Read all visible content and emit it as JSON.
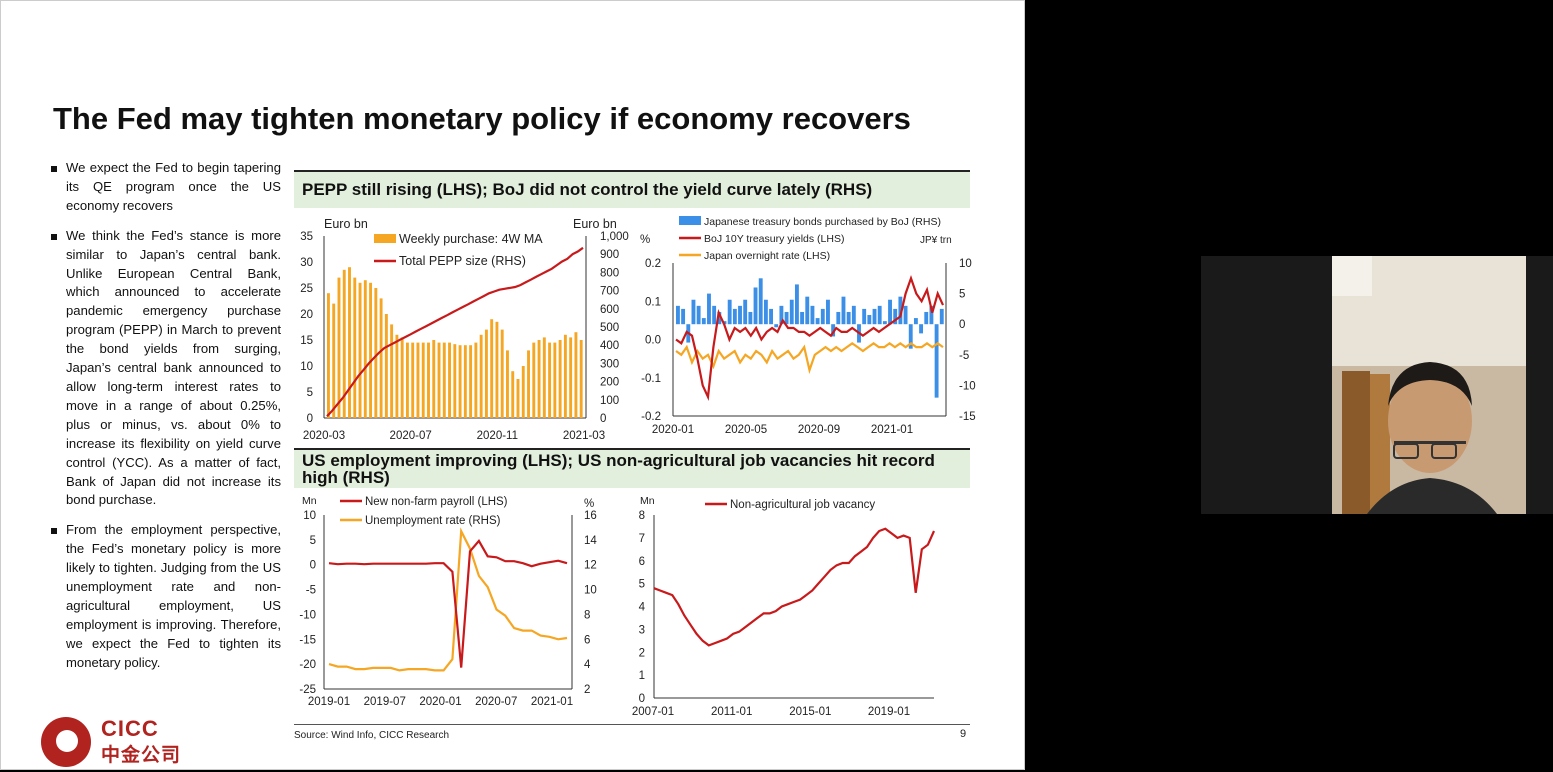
{
  "slide": {
    "title": "The Fed may tighten monetary policy if economy recovers",
    "bullets": [
      "We expect the Fed to begin tapering its QE program once the US economy recovers",
      "We think the Fed’s stance is more similar to Japan’s central bank. Unlike European Central Bank, which announced to accelerate pandemic emergency purchase program (PEPP) in March to prevent the bond yields from surging, Japan’s central bank announced to allow long-term interest rates to move in a range of about 0.25%, plus or minus, vs. about 0% to increase its flexibility on yield curve control (YCC). As a matter of fact, Bank of Japan did not increase its bond purchase.",
      "From the employment perspective, the Fed’s monetary policy is more likely to tighten. Judging from the US unemployment rate and non-agricultural employment, US employment is improving. Therefore, we expect the Fed to tighten its monetary policy."
    ],
    "panel1_title": "PEPP still rising (LHS); BoJ did not control the yield curve lately (RHS)",
    "panel2_title": "US employment improving (LHS); US non-agricultural job vacancies hit record high (RHS)",
    "source": "Source: Wind Info, CICC Research",
    "page_number": "9",
    "logo": {
      "en": "CICC",
      "cn": "中金公司"
    }
  },
  "colors": {
    "orange": "#f5a623",
    "red": "#c8191b",
    "blue": "#3b8fe6",
    "panel_bg": "#e2efdc",
    "brand_red": "#b0231f"
  },
  "video": {
    "label": "presenter webcam"
  },
  "chart_data": [
    {
      "id": "pepp",
      "type": "bar+line",
      "y_left_unit": "Euro bn",
      "y_right_unit": "Euro bn",
      "ylim_left": [
        0,
        35
      ],
      "ylim_right": [
        0,
        1000
      ],
      "yticks_left": [
        "0",
        "5",
        "10",
        "15",
        "20",
        "25",
        "30",
        "35"
      ],
      "yticks_right": [
        "0",
        "100",
        "200",
        "300",
        "400",
        "500",
        "600",
        "700",
        "800",
        "900",
        "1,000"
      ],
      "xticks": [
        "2020-03",
        "2020-07",
        "2020-11",
        "2021-03"
      ],
      "legend": [
        "Weekly purchase: 4W MA",
        "Total PEPP size (RHS)"
      ],
      "weekly_purchase": [
        24,
        22,
        27,
        28.5,
        29,
        27,
        26,
        26.5,
        26,
        25,
        23,
        20,
        18,
        16,
        15.5,
        14.5,
        14.5,
        14.5,
        14.5,
        14.5,
        15,
        14.5,
        14.5,
        14.5,
        14.2,
        14,
        14,
        14,
        14.5,
        16,
        17,
        19,
        18.5,
        17,
        13,
        9,
        7.5,
        10,
        13,
        14.5,
        15,
        15.5,
        14.5,
        14.5,
        15,
        16,
        15.5,
        16.5,
        15
      ],
      "total_pepp": [
        10,
        40,
        75,
        110,
        150,
        190,
        230,
        265,
        300,
        330,
        360,
        385,
        400,
        415,
        430,
        445,
        460,
        475,
        490,
        505,
        520,
        535,
        550,
        565,
        580,
        595,
        610,
        625,
        640,
        655,
        670,
        685,
        695,
        705,
        710,
        715,
        720,
        730,
        745,
        760,
        775,
        790,
        805,
        820,
        840,
        860,
        875,
        900,
        915,
        935
      ]
    },
    {
      "id": "boj",
      "type": "bar+line",
      "y_left_unit": "%",
      "y_right_unit": "JP¥ trn",
      "ylim_left": [
        -0.2,
        0.2
      ],
      "ylim_right": [
        -15,
        10
      ],
      "yticks_left": [
        "-0.2",
        "-0.1",
        "0.0",
        "0.1",
        "0.2"
      ],
      "yticks_right": [
        "-15",
        "-10",
        "-5",
        "0",
        "5",
        "10"
      ],
      "xticks": [
        "2020-01",
        "2020-05",
        "2020-09",
        "2021-01"
      ],
      "legend": [
        "Japanese treasury bonds purchased by BoJ (RHS)",
        "BoJ 10Y treasury yields (LHS)",
        "Japan overnight rate (LHS)"
      ],
      "bond_purchases": [
        3,
        2.5,
        -3,
        4,
        3,
        1,
        5,
        3,
        2,
        0.5,
        4,
        2.5,
        3,
        4,
        2,
        6,
        7.5,
        4,
        2.5,
        -0.5,
        3,
        2,
        4,
        6.5,
        2,
        4.5,
        3,
        1,
        2.5,
        4,
        -2,
        2,
        4.5,
        2,
        3,
        -3,
        2.5,
        1.5,
        2.5,
        3,
        0.5,
        4,
        2.5,
        4.5,
        3,
        -4,
        1,
        -1.5,
        2,
        3,
        -12,
        2.5
      ],
      "yields_10y": [
        0.0,
        -0.01,
        0.02,
        0.01,
        -0.05,
        -0.12,
        -0.15,
        -0.02,
        0.07,
        0.04,
        0.0,
        0.03,
        0.02,
        0.03,
        0.01,
        0.03,
        0.0,
        0.02,
        0.03,
        0.02,
        0.05,
        0.03,
        0.03,
        0.02,
        0.02,
        0.01,
        0.02,
        0.03,
        0.02,
        0.01,
        0.03,
        0.02,
        0.02,
        0.03,
        0.02,
        0.01,
        0.02,
        0.03,
        0.02,
        0.03,
        0.04,
        0.05,
        0.06,
        0.12,
        0.16,
        0.12,
        0.1,
        0.13,
        0.07,
        0.12,
        0.09
      ],
      "overnight_rate": [
        -0.03,
        -0.04,
        -0.02,
        -0.06,
        -0.03,
        -0.05,
        -0.04,
        -0.07,
        -0.03,
        -0.05,
        -0.04,
        -0.03,
        -0.06,
        -0.04,
        -0.05,
        -0.03,
        -0.04,
        -0.06,
        -0.03,
        -0.05,
        -0.04,
        -0.03,
        -0.05,
        -0.04,
        -0.02,
        -0.08,
        -0.04,
        -0.03,
        -0.02,
        -0.03,
        -0.02,
        -0.03,
        -0.02,
        -0.01,
        -0.02,
        -0.03,
        -0.02,
        -0.01,
        -0.02,
        -0.02,
        -0.01,
        -0.02,
        -0.01,
        -0.02,
        -0.01,
        -0.02,
        -0.02,
        -0.01,
        -0.02,
        -0.01,
        -0.02
      ]
    },
    {
      "id": "us_employment",
      "type": "line",
      "y_left_unit": "Mn",
      "y_right_unit": "%",
      "ylim_left": [
        -25,
        10
      ],
      "ylim_right": [
        2,
        16
      ],
      "yticks_left": [
        "-25",
        "-20",
        "-15",
        "-10",
        "-5",
        "0",
        "5",
        "10"
      ],
      "yticks_right": [
        "2",
        "4",
        "6",
        "8",
        "10",
        "12",
        "14",
        "16"
      ],
      "xticks": [
        "2019-01",
        "2019-07",
        "2020-01",
        "2020-07",
        "2021-01"
      ],
      "legend": [
        "New non-farm payroll (LHS)",
        "Unemployment rate (RHS)"
      ],
      "x": [
        "2019-01",
        "2019-02",
        "2019-03",
        "2019-04",
        "2019-05",
        "2019-06",
        "2019-07",
        "2019-08",
        "2019-09",
        "2019-10",
        "2019-11",
        "2019-12",
        "2020-01",
        "2020-02",
        "2020-03",
        "2020-04",
        "2020-05",
        "2020-06",
        "2020-07",
        "2020-08",
        "2020-09",
        "2020-10",
        "2020-11",
        "2020-12",
        "2021-01",
        "2021-02",
        "2021-03",
        "2021-04"
      ],
      "new_nonfarm_payroll": [
        0.3,
        0.1,
        0.2,
        0.2,
        0.1,
        0.2,
        0.2,
        0.2,
        0.2,
        0.2,
        0.2,
        0.2,
        0.3,
        0.3,
        -1.4,
        -20.7,
        2.7,
        4.8,
        1.7,
        1.5,
        0.7,
        0.7,
        0.3,
        -0.3,
        0.2,
        0.5,
        0.8,
        0.3
      ],
      "unemployment_rate": [
        4.0,
        3.8,
        3.8,
        3.6,
        3.6,
        3.7,
        3.7,
        3.7,
        3.5,
        3.6,
        3.6,
        3.6,
        3.5,
        3.5,
        4.4,
        14.7,
        13.3,
        11.1,
        10.2,
        8.4,
        7.9,
        6.9,
        6.7,
        6.7,
        6.3,
        6.2,
        6.0,
        6.1
      ]
    },
    {
      "id": "job_vacancy",
      "type": "line",
      "y_left_unit": "Mn",
      "ylim": [
        0,
        8
      ],
      "yticks": [
        "0",
        "1",
        "2",
        "3",
        "4",
        "5",
        "6",
        "7",
        "8"
      ],
      "xticks": [
        "2007-01",
        "2011-01",
        "2015-01",
        "2019-01"
      ],
      "legend": [
        "Non-agricultural job vacancy"
      ],
      "x_start_year": 2007,
      "vacancies": [
        4.8,
        4.7,
        4.6,
        4.5,
        4.1,
        3.6,
        3.2,
        2.8,
        2.5,
        2.3,
        2.4,
        2.5,
        2.6,
        2.8,
        2.9,
        3.1,
        3.3,
        3.5,
        3.7,
        3.7,
        3.8,
        4.0,
        4.1,
        4.2,
        4.3,
        4.5,
        4.7,
        5.0,
        5.3,
        5.6,
        5.8,
        5.9,
        5.9,
        6.2,
        6.4,
        6.6,
        7.0,
        7.3,
        7.4,
        7.2,
        7.0,
        7.1,
        7.0,
        4.6,
        6.5,
        6.7,
        7.3
      ]
    }
  ]
}
